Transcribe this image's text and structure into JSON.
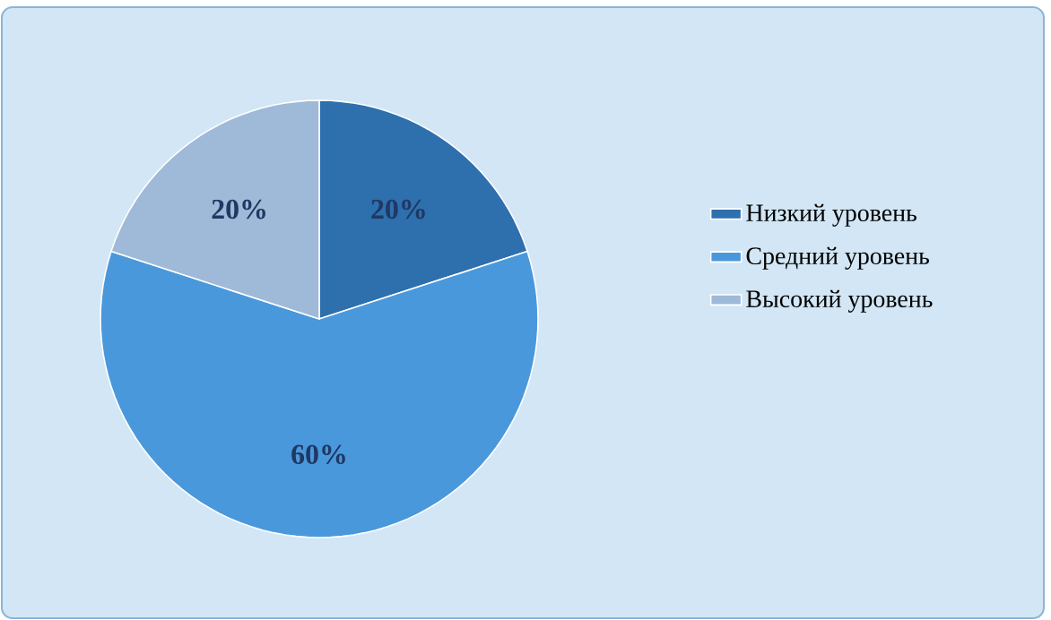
{
  "chart_data": {
    "type": "pie",
    "categories": [
      "Низкий уровень",
      "Средний уровень",
      "Высокий уровень"
    ],
    "values": [
      20,
      60,
      20
    ],
    "value_labels": [
      "20%",
      "60%",
      "20%"
    ],
    "colors": [
      "#2e6fae",
      "#4a98dc",
      "#9fbad8"
    ],
    "legend": "right"
  }
}
